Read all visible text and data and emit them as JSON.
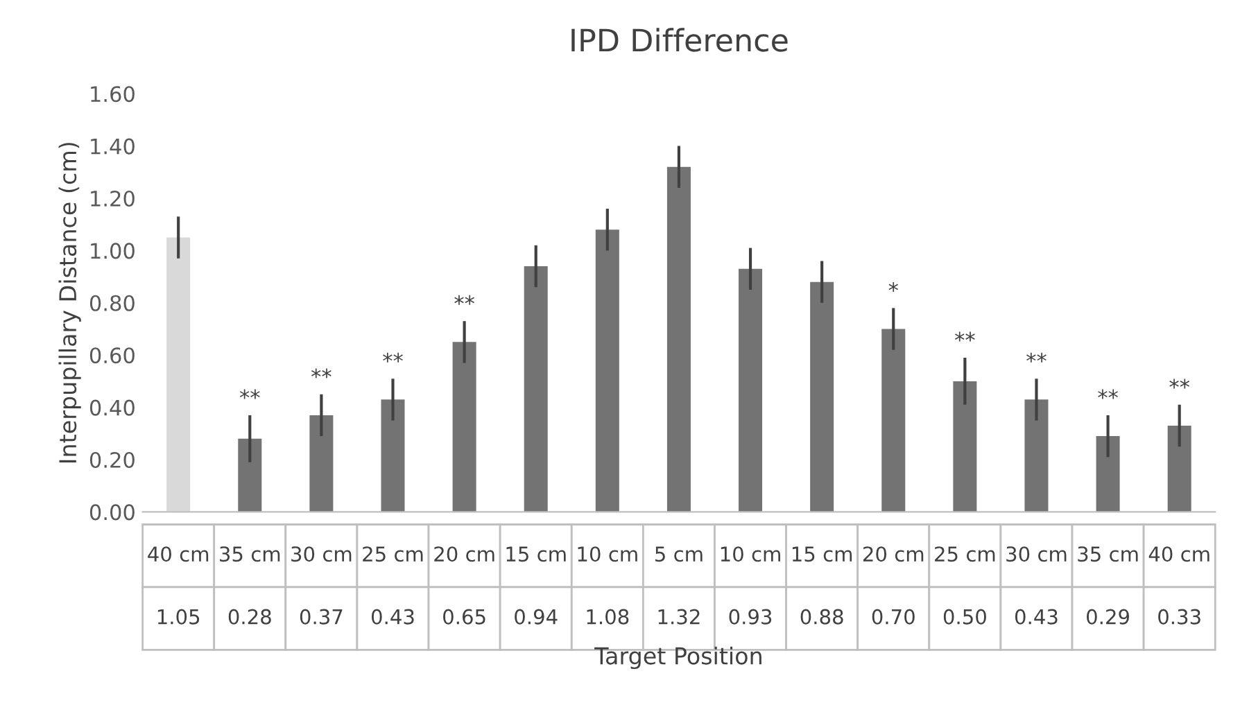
{
  "chart_data": {
    "type": "bar",
    "title": "IPD Difference",
    "xlabel": "Target Position",
    "ylabel": "Interpupillary Distance (cm)",
    "categories": [
      "40 cm",
      "35 cm",
      "30 cm",
      "25 cm",
      "20 cm",
      "15 cm",
      "10 cm",
      "5 cm",
      "10 cm",
      "15 cm",
      "20 cm",
      "25 cm",
      "30 cm",
      "35 cm",
      "40 cm"
    ],
    "values": [
      1.05,
      0.28,
      0.37,
      0.43,
      0.65,
      0.94,
      1.08,
      1.32,
      0.93,
      0.88,
      0.7,
      0.5,
      0.43,
      0.29,
      0.33
    ],
    "value_labels": [
      "1.05",
      "0.28",
      "0.37",
      "0.43",
      "0.65",
      "0.94",
      "1.08",
      "1.32",
      "0.93",
      "0.88",
      "0.70",
      "0.50",
      "0.43",
      "0.29",
      "0.33"
    ],
    "errors": [
      0.08,
      0.09,
      0.08,
      0.08,
      0.08,
      0.08,
      0.08,
      0.08,
      0.08,
      0.08,
      0.08,
      0.09,
      0.08,
      0.08,
      0.08
    ],
    "colors": [
      "#d9d9d9",
      "#737373",
      "#737373",
      "#737373",
      "#737373",
      "#737373",
      "#737373",
      "#737373",
      "#737373",
      "#737373",
      "#737373",
      "#737373",
      "#737373",
      "#737373",
      "#737373"
    ],
    "ylim": [
      0,
      1.6
    ],
    "yticks": [
      {
        "value": 0,
        "label": "0.00"
      },
      {
        "value": 0.2,
        "label": "0.20"
      },
      {
        "value": 0.4,
        "label": "0.40"
      },
      {
        "value": 0.6,
        "label": "0.60"
      },
      {
        "value": 0.8,
        "label": "0.80"
      },
      {
        "value": 1.0,
        "label": "1.00"
      },
      {
        "value": 1.2,
        "label": "1.20"
      },
      {
        "value": 1.4,
        "label": "1.40"
      },
      {
        "value": 1.6,
        "label": "1.60"
      }
    ],
    "annotations": [
      "**",
      "**",
      "**",
      "**",
      "*",
      "**",
      "**",
      "**",
      "**"
    ]
  }
}
